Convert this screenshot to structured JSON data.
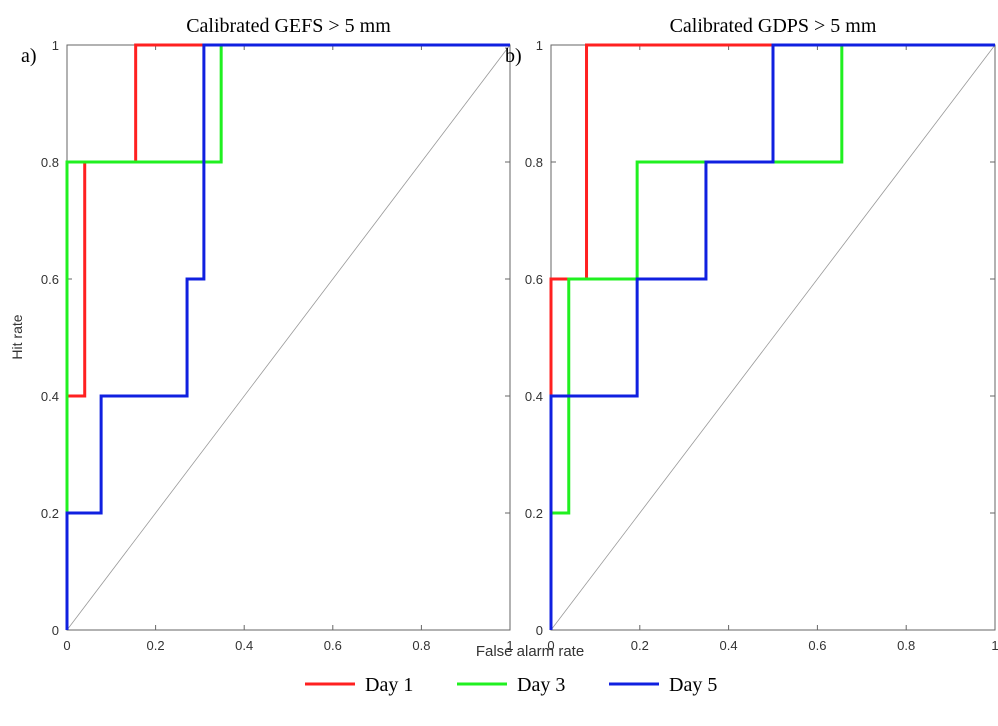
{
  "chart_data": [
    {
      "type": "line",
      "title": "Calibrated GEFS > 5 mm",
      "panel_label": "a)",
      "xlabel": "False alarm rate",
      "ylabel": "Hit rate",
      "xlim": [
        0,
        1
      ],
      "ylim": [
        0,
        1
      ],
      "xticks": [
        0,
        0.2,
        0.4,
        0.6,
        0.8,
        1
      ],
      "yticks": [
        0,
        0.2,
        0.4,
        0.6,
        0.8,
        1
      ],
      "series": [
        {
          "name": "Day 1",
          "color": "#ff2020",
          "x": [
            0,
            0,
            0.04,
            0.04,
            0.155,
            0.155,
            1
          ],
          "values": [
            0,
            0.4,
            0.4,
            0.8,
            0.8,
            1,
            1
          ]
        },
        {
          "name": "Day 3",
          "color": "#20f020",
          "x": [
            0,
            0,
            0.348,
            0.348,
            1
          ],
          "values": [
            0,
            0.8,
            0.8,
            1,
            1
          ]
        },
        {
          "name": "Day 5",
          "color": "#1020e0",
          "x": [
            0,
            0,
            0.077,
            0.077,
            0.271,
            0.271,
            0.309,
            0.309,
            1
          ],
          "values": [
            0,
            0.2,
            0.2,
            0.4,
            0.4,
            0.6,
            0.6,
            1,
            1
          ]
        }
      ]
    },
    {
      "type": "line",
      "title": "Calibrated GDPS > 5 mm",
      "panel_label": "b)",
      "xlim": [
        0,
        1
      ],
      "ylim": [
        0,
        1
      ],
      "xticks": [
        0,
        0.2,
        0.4,
        0.6,
        0.8,
        1
      ],
      "yticks": [
        0,
        0.2,
        0.4,
        0.6,
        0.8,
        1
      ],
      "series": [
        {
          "color": "#ff2020",
          "x": [
            0,
            0,
            0.08,
            0.08,
            1
          ],
          "values": [
            0.4,
            0.6,
            0.6,
            1,
            1
          ]
        },
        {
          "color": "#20f020",
          "x": [
            0,
            0,
            0.04,
            0.04,
            0.194,
            0.194,
            0.655,
            0.655,
            1
          ],
          "values": [
            0,
            0.2,
            0.2,
            0.6,
            0.6,
            0.8,
            0.8,
            1,
            1
          ]
        },
        {
          "color": "#1020e0",
          "x": [
            0,
            0,
            0.194,
            0.194,
            0.349,
            0.349,
            0.5,
            0.5,
            1
          ],
          "values": [
            0,
            0.4,
            0.4,
            0.6,
            0.6,
            0.8,
            0.8,
            1,
            1
          ]
        }
      ]
    }
  ]
}
